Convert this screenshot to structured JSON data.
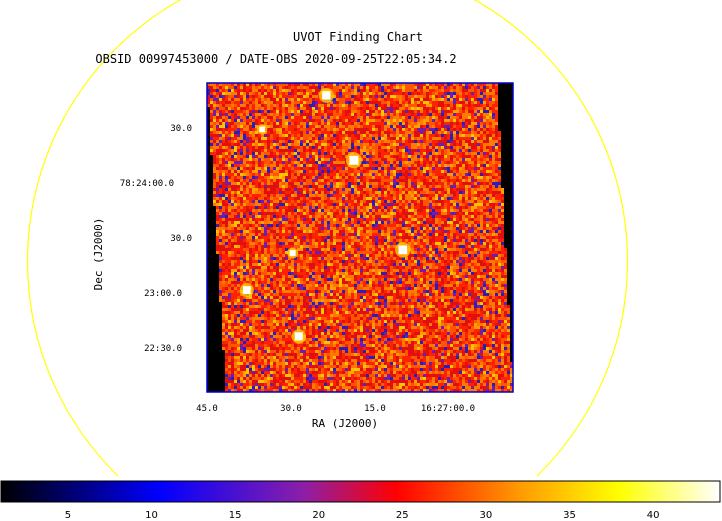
{
  "chart_data": {
    "type": "heatmap",
    "title": "UVOT Finding Chart",
    "subtitle": "OBSID 00997453000 / DATE-OBS 2020-09-25T22:05:34.2",
    "xlabel": "RA (J2000)",
    "ylabel": "Dec (J2000)",
    "x_ticks": [
      "45.0",
      "30.0",
      "15.0",
      "16:27:00.0"
    ],
    "y_ticks": [
      "30.0",
      "78:24:00.0",
      "30.0",
      "23:00.0",
      "22:30.0"
    ],
    "colorbar": {
      "ticks": [
        5,
        10,
        15,
        20,
        25,
        30,
        35,
        40
      ],
      "range": [
        1,
        44
      ],
      "colormap": [
        "#000000",
        "#0000ff",
        "#8b1fa8",
        "#ff0000",
        "#ff9900",
        "#ffff00",
        "#ffffff"
      ]
    },
    "frame_color": "#0000cc",
    "circle_color": "#ffff00",
    "sources": [
      {
        "ra_frac": 0.39,
        "dec_frac": 0.04,
        "strength": 0.9
      },
      {
        "ra_frac": 0.48,
        "dec_frac": 0.25,
        "strength": 1.0
      },
      {
        "ra_frac": 0.64,
        "dec_frac": 0.54,
        "strength": 0.95
      },
      {
        "ra_frac": 0.13,
        "dec_frac": 0.67,
        "strength": 0.8
      },
      {
        "ra_frac": 0.3,
        "dec_frac": 0.82,
        "strength": 0.85
      },
      {
        "ra_frac": 0.28,
        "dec_frac": 0.55,
        "strength": 0.5
      },
      {
        "ra_frac": 0.18,
        "dec_frac": 0.15,
        "strength": 0.45
      }
    ]
  }
}
